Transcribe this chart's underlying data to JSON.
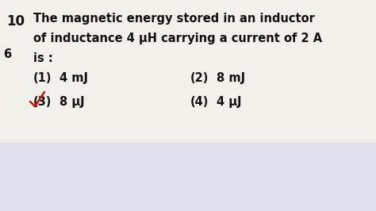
{
  "bg_color": "#e8e8f0",
  "content_bg": "#f2f0eb",
  "bottom_bg": "#e0e0ee",
  "question_number": "10",
  "question_line1_a": "The magnetic energy stored in an ",
  "question_line1_b": "inductor",
  "question_line2": "of inductance 4 μH carrying a current of 2 A",
  "question_line3": "is :",
  "left_char": "6",
  "option1_label": "(1)",
  "option1_val": "4 mJ",
  "option2_label": "(2)",
  "option2_val": "8 mJ",
  "option3_label": "(3)",
  "option3_val": "8 μJ",
  "option4_label": "(4)",
  "option4_val": "4 μJ",
  "text_color": "#111111",
  "highlight_color": "#cc1100",
  "fontsize": 10.5,
  "num_fontsize": 12
}
